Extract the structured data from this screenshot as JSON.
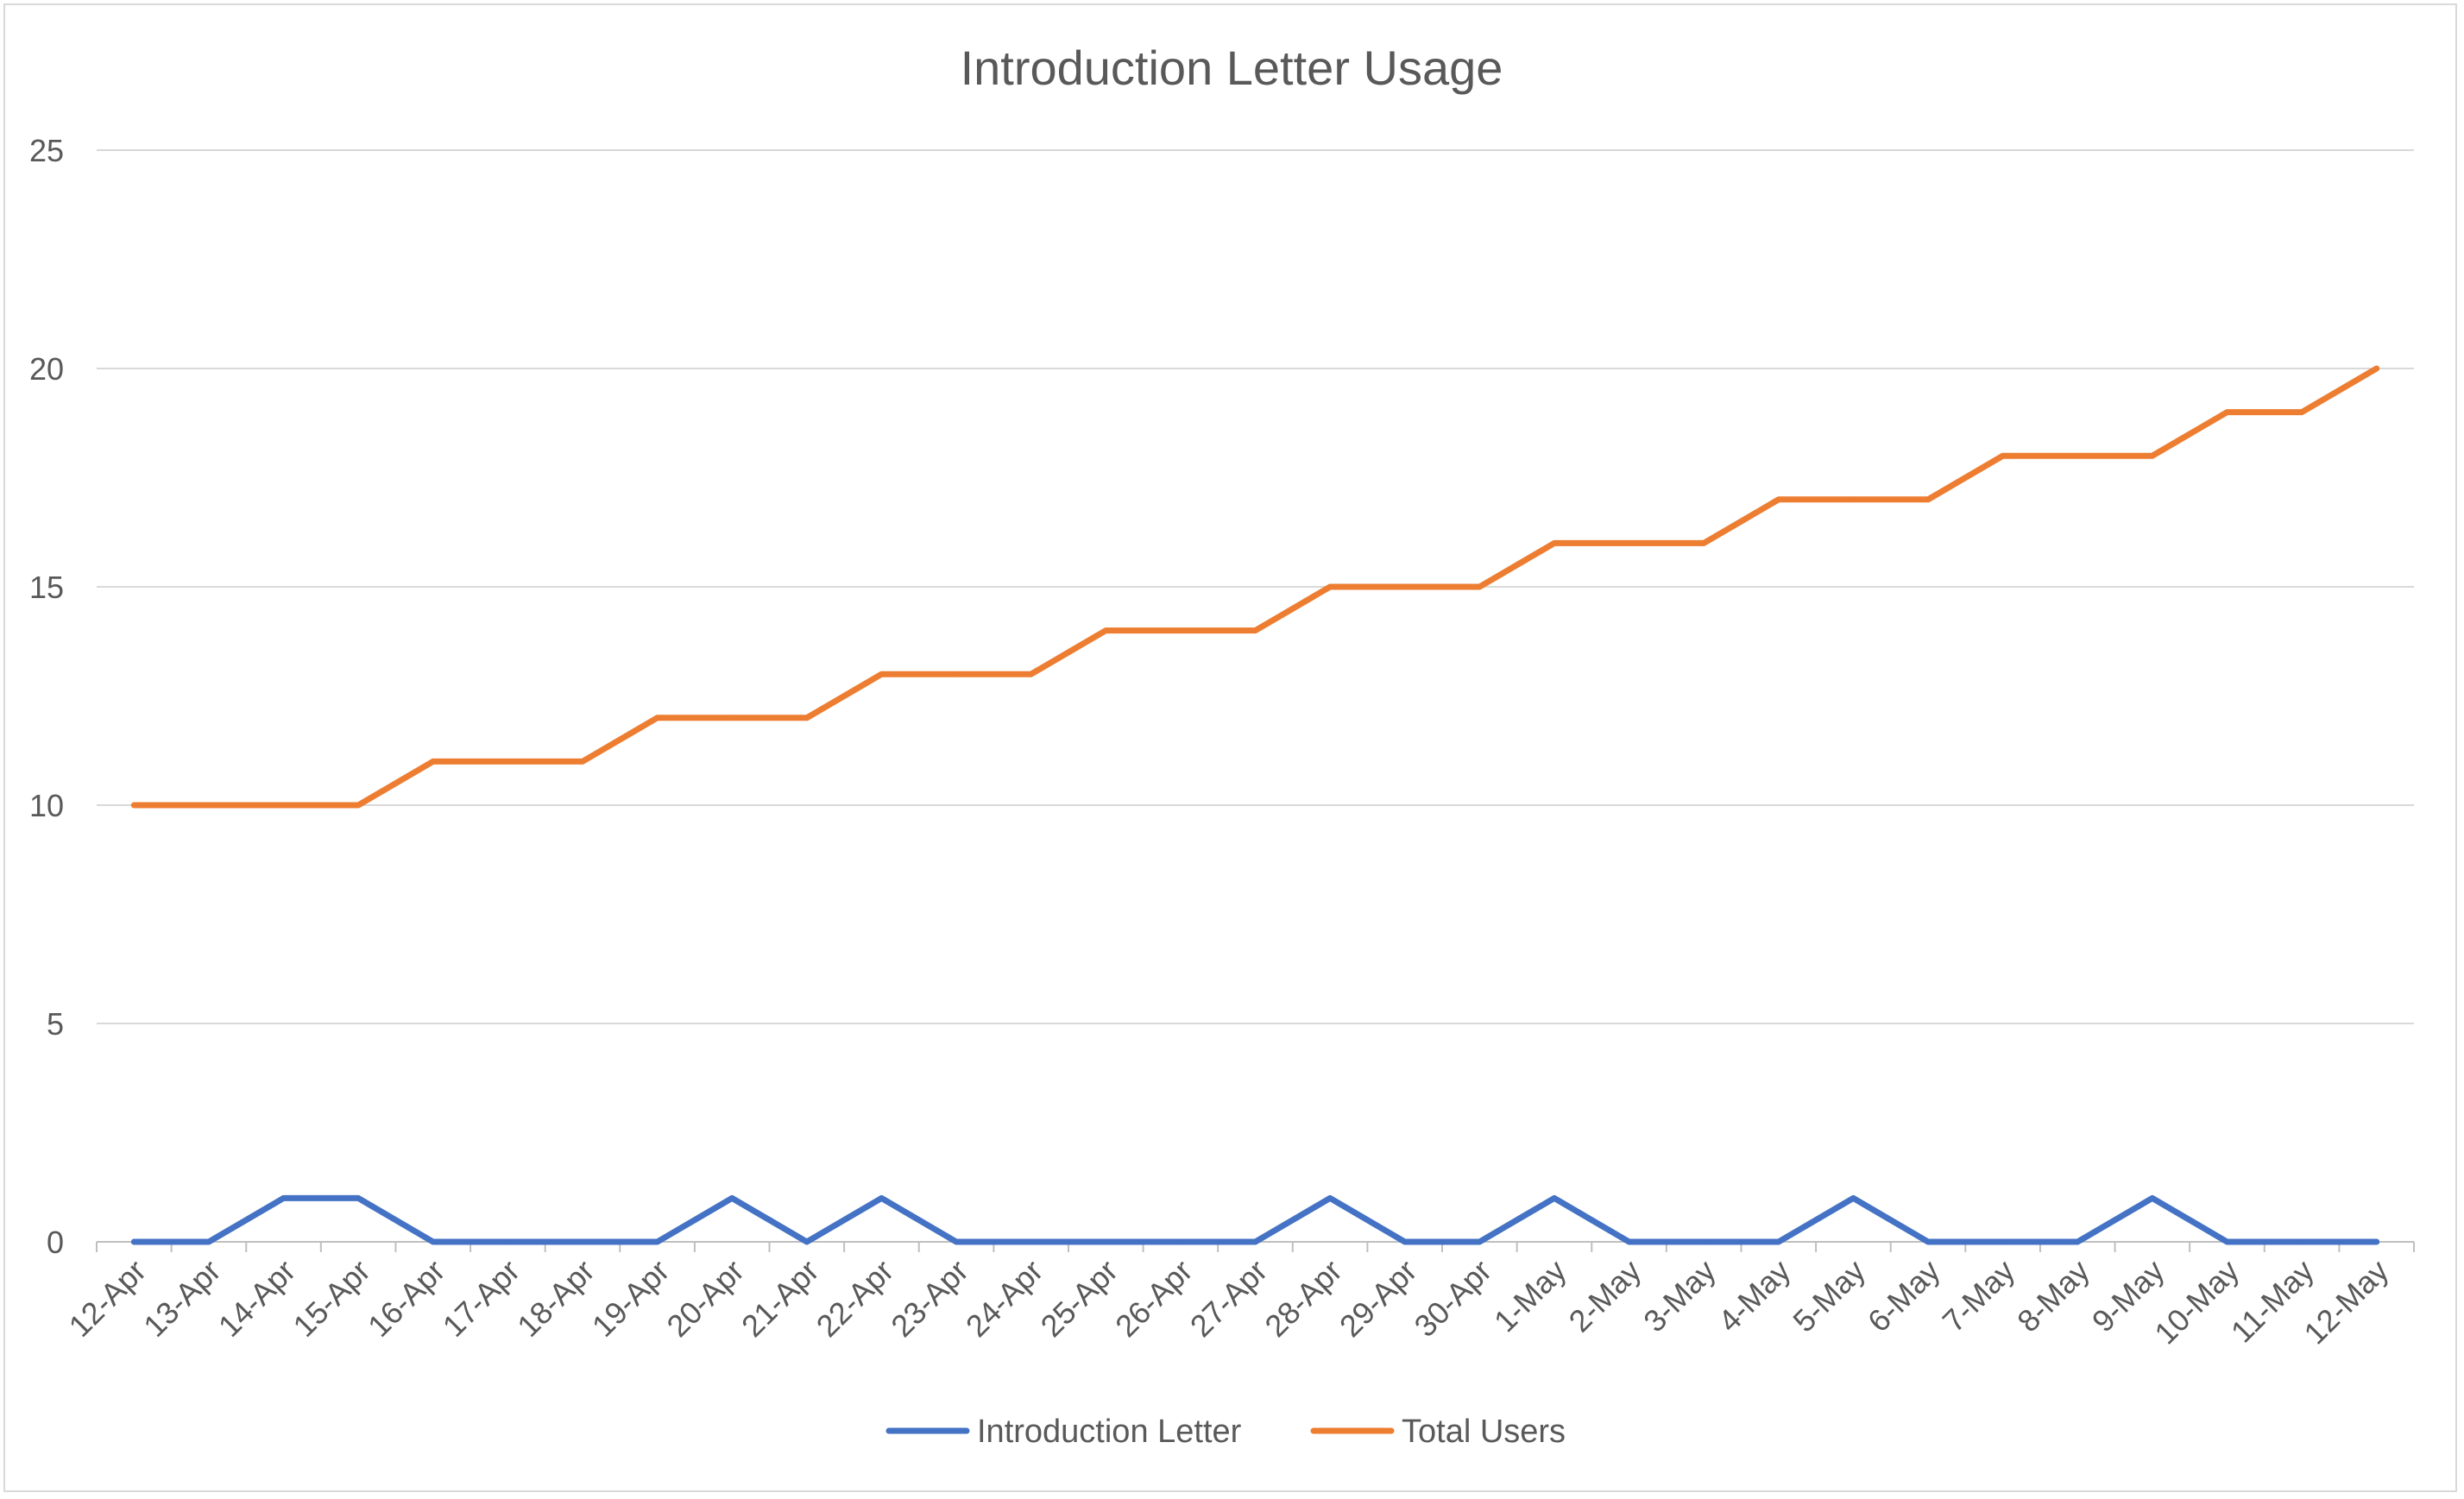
{
  "chart_data": {
    "type": "line",
    "title": "Introduction Letter Usage",
    "xlabel": "",
    "ylabel": "",
    "ylim": [
      0,
      25
    ],
    "yticks": [
      0,
      5,
      10,
      15,
      20,
      25
    ],
    "grid": true,
    "legend_position": "bottom",
    "categories": [
      "12-Apr",
      "13-Apr",
      "14-Apr",
      "15-Apr",
      "16-Apr",
      "17-Apr",
      "18-Apr",
      "19-Apr",
      "20-Apr",
      "21-Apr",
      "22-Apr",
      "23-Apr",
      "24-Apr",
      "25-Apr",
      "26-Apr",
      "27-Apr",
      "28-Apr",
      "29-Apr",
      "30-Apr",
      "1-May",
      "2-May",
      "3-May",
      "4-May",
      "5-May",
      "6-May",
      "7-May",
      "8-May",
      "9-May",
      "10-May",
      "11-May",
      "12-May"
    ],
    "series": [
      {
        "name": "Introduction Letter",
        "color": "#4472c4",
        "values": [
          0,
          0,
          1,
          1,
          0,
          0,
          0,
          0,
          1,
          0,
          1,
          0,
          0,
          0,
          0,
          0,
          1,
          0,
          0,
          1,
          0,
          0,
          0,
          1,
          0,
          0,
          0,
          1,
          0,
          0,
          0
        ]
      },
      {
        "name": "Total Users",
        "color": "#ed7d31",
        "values": [
          10,
          10,
          10,
          10,
          11,
          11,
          11,
          12,
          12,
          12,
          13,
          13,
          13,
          14,
          14,
          14,
          15,
          15,
          15,
          16,
          16,
          16,
          17,
          17,
          17,
          18,
          18,
          18,
          19,
          19,
          20
        ]
      }
    ]
  }
}
